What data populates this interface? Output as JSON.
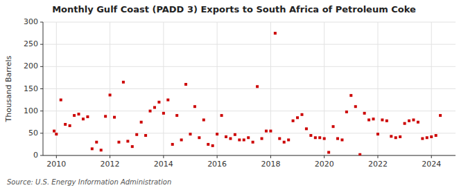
{
  "chart_data": {
    "type": "scatter",
    "title": "Monthly Gulf Coast (PADD 3) Exports to South Africa of Petroleum Coke",
    "y_label": "Thousand Barrels",
    "source": "Source: U.S. Energy Information Administration",
    "color": "#cc0000",
    "marker": "square",
    "grid": true,
    "xlim": [
      2009.5,
      2024.9
    ],
    "xticks": [
      2010,
      2012,
      2014,
      2016,
      2018,
      2020,
      2022,
      2024
    ],
    "ylim": [
      0,
      300
    ],
    "yticks": [
      0,
      50,
      100,
      150,
      200,
      250,
      300
    ],
    "x": [
      2009.917,
      2010.0,
      2010.167,
      2010.333,
      2010.5,
      2010.667,
      2010.833,
      2011.0,
      2011.167,
      2011.333,
      2011.5,
      2011.667,
      2011.833,
      2012.0,
      2012.167,
      2012.333,
      2012.5,
      2012.667,
      2012.833,
      2013.0,
      2013.167,
      2013.333,
      2013.5,
      2013.667,
      2013.833,
      2014.0,
      2014.167,
      2014.333,
      2014.5,
      2014.667,
      2014.833,
      2015.0,
      2015.167,
      2015.333,
      2015.5,
      2015.667,
      2015.833,
      2016.0,
      2016.167,
      2016.333,
      2016.5,
      2016.667,
      2016.833,
      2017.0,
      2017.167,
      2017.333,
      2017.5,
      2017.667,
      2017.833,
      2018.0,
      2018.167,
      2018.333,
      2018.5,
      2018.667,
      2018.833,
      2019.0,
      2019.167,
      2019.333,
      2019.5,
      2019.667,
      2019.833,
      2020.0,
      2020.167,
      2020.333,
      2020.5,
      2020.667,
      2020.833,
      2021.0,
      2021.167,
      2021.333,
      2021.5,
      2021.667,
      2021.833,
      2022.0,
      2022.167,
      2022.333,
      2022.5,
      2022.667,
      2022.833,
      2023.0,
      2023.167,
      2023.333,
      2023.5,
      2023.667,
      2023.833,
      2024.0,
      2024.167,
      2024.333
    ],
    "values": [
      55,
      48,
      125,
      70,
      67,
      90,
      93,
      82,
      87,
      15,
      30,
      12,
      88,
      136,
      86,
      30,
      165,
      32,
      20,
      47,
      75,
      45,
      100,
      108,
      120,
      95,
      125,
      25,
      90,
      35,
      160,
      48,
      110,
      40,
      80,
      25,
      22,
      48,
      90,
      42,
      38,
      47,
      35,
      35,
      40,
      30,
      155,
      38,
      55,
      55,
      275,
      38,
      30,
      35,
      78,
      85,
      92,
      60,
      45,
      40,
      40,
      38,
      7,
      65,
      38,
      35,
      98,
      135,
      110,
      2,
      95,
      80,
      82,
      48,
      80,
      78,
      43,
      40,
      42,
      72,
      78,
      80,
      75,
      38,
      40,
      42,
      45,
      90
    ]
  }
}
